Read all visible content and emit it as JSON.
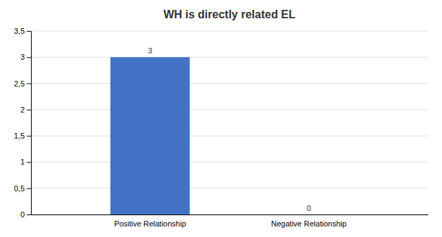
{
  "chart_data": {
    "type": "bar",
    "title": "WH is directly related EL",
    "categories": [
      "Positive Relationship",
      "Negative Relationship"
    ],
    "values": [
      3,
      0
    ],
    "color": "#4472C4",
    "ylim": [
      0,
      3.5
    ],
    "yticks": [
      0,
      {
        "value": 0.5,
        "label": "0,5"
      },
      1,
      {
        "value": 1.5,
        "label": "1,5"
      },
      2,
      {
        "value": 2.5,
        "label": "2,5"
      },
      3,
      {
        "value": 3.5,
        "label": "3,5"
      }
    ],
    "grid": true,
    "data_labels": true
  }
}
